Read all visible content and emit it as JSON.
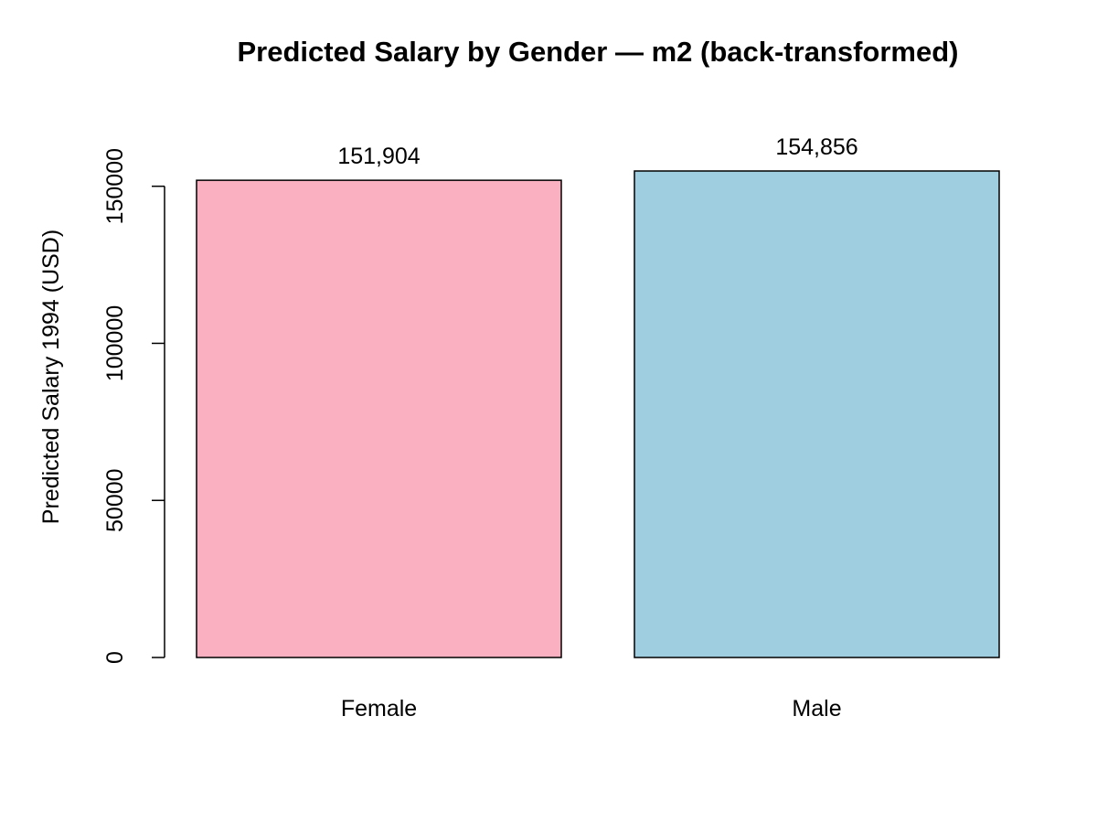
{
  "chart_data": {
    "type": "bar",
    "title": "Predicted Salary by Gender — m2 (back-transformed)",
    "xlabel": "",
    "ylabel": "Predicted Salary 1994 (USD)",
    "categories": [
      "Female",
      "Male"
    ],
    "values": [
      151904,
      154856
    ],
    "value_labels": [
      "151,904",
      "154,856"
    ],
    "colors": [
      "#FBB0C1",
      "#9FCEE0"
    ],
    "ylim": [
      0,
      154856
    ],
    "yticks": [
      0,
      50000,
      100000,
      150000
    ],
    "ytick_labels": [
      "0",
      "50000",
      "100000",
      "150000"
    ],
    "grid": false,
    "legend": "none"
  }
}
